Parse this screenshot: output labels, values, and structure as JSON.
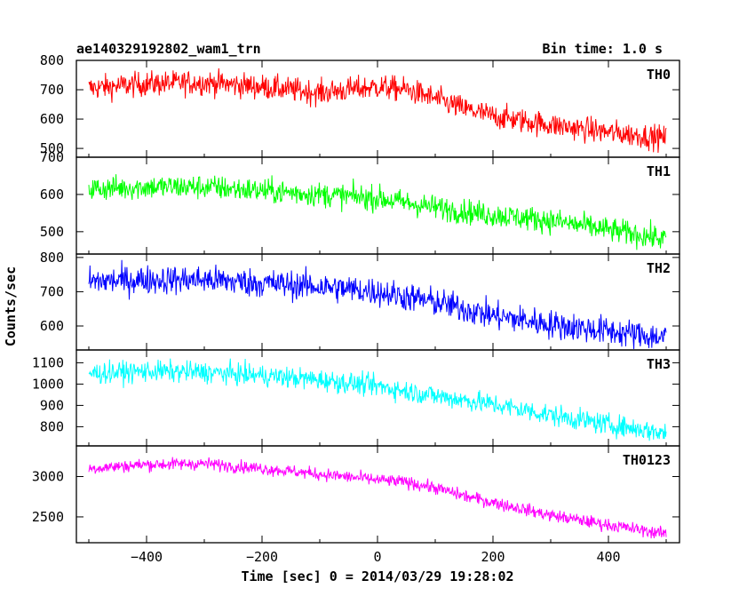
{
  "chart_data": {
    "type": "line",
    "title": "ae140329192802_wam1_trn",
    "subtitle": "Bin time: 1.0 s",
    "xlabel": "Time [sec] 0 = 2014/03/29 19:28:02",
    "ylabel": "Counts/sec",
    "xlim": [
      -500,
      500
    ],
    "x_ticks": [
      -400,
      -200,
      0,
      200,
      400
    ],
    "x_tick_labels": [
      "−400",
      "−200",
      "0",
      "200",
      "400"
    ],
    "panels": [
      {
        "name": "TH0",
        "color": "#ff0000",
        "ylim": [
          470,
          800
        ],
        "y_ticks": [
          500,
          600,
          700,
          800
        ],
        "x": [
          -500,
          -400,
          -300,
          -200,
          -100,
          0,
          50,
          100,
          150,
          200,
          300,
          400,
          500
        ],
        "y": [
          705,
          720,
          725,
          710,
          690,
          710,
          700,
          670,
          635,
          610,
          580,
          555,
          535
        ],
        "noise": 38
      },
      {
        "name": "TH1",
        "color": "#00ff00",
        "ylim": [
          440,
          700
        ],
        "y_ticks": [
          500,
          600,
          700
        ],
        "x": [
          -500,
          -400,
          -300,
          -200,
          -100,
          0,
          100,
          200,
          300,
          400,
          500
        ],
        "y": [
          615,
          620,
          620,
          610,
          600,
          590,
          565,
          545,
          530,
          505,
          480
        ],
        "noise": 30
      },
      {
        "name": "TH2",
        "color": "#0000ff",
        "ylim": [
          530,
          810
        ],
        "y_ticks": [
          600,
          700,
          800
        ],
        "x": [
          -500,
          -400,
          -300,
          -200,
          -100,
          0,
          100,
          200,
          300,
          400,
          500
        ],
        "y": [
          730,
          735,
          735,
          725,
          715,
          700,
          670,
          630,
          605,
          585,
          565
        ],
        "noise": 38
      },
      {
        "name": "TH3",
        "color": "#00ffff",
        "ylim": [
          710,
          1160
        ],
        "y_ticks": [
          800,
          900,
          1000,
          1100
        ],
        "x": [
          -500,
          -400,
          -300,
          -200,
          -100,
          0,
          100,
          200,
          300,
          400,
          500
        ],
        "y": [
          1050,
          1060,
          1055,
          1040,
          1020,
          990,
          945,
          905,
          855,
          810,
          770
        ],
        "noise": 45
      },
      {
        "name": "TH0123",
        "color": "#ff00ff",
        "ylim": [
          2180,
          3380
        ],
        "y_ticks": [
          2500,
          3000
        ],
        "x": [
          -500,
          -400,
          -300,
          -200,
          -100,
          0,
          50,
          100,
          150,
          200,
          300,
          400,
          500
        ],
        "y": [
          3100,
          3150,
          3160,
          3100,
          3030,
          2960,
          2930,
          2860,
          2760,
          2680,
          2520,
          2400,
          2290
        ],
        "noise": 70
      }
    ]
  }
}
